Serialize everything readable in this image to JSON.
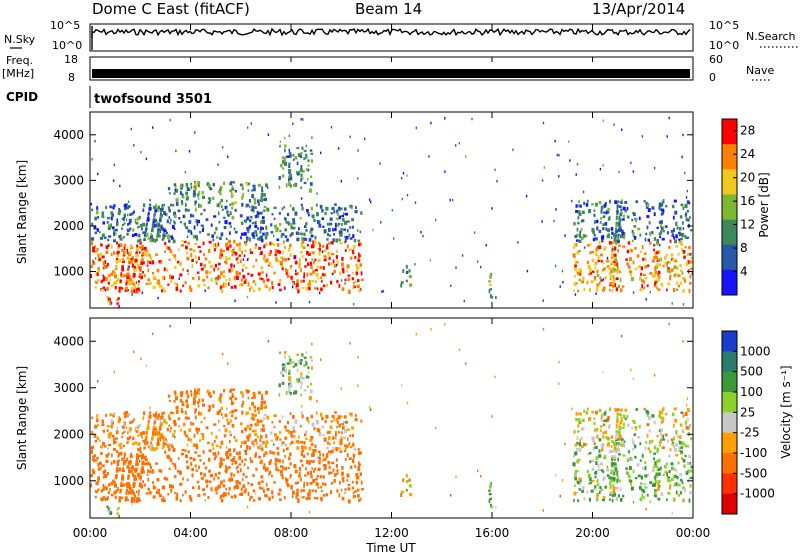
{
  "header": {
    "radar": "Dome C East (fitACF)",
    "beam": "Beam 14",
    "date": "13/Apr/2014"
  },
  "left_labels": {
    "nsky": "N.Sky",
    "freq": "Freq.",
    "freq_unit": "[MHz]",
    "cpid": "CPID"
  },
  "right_labels": {
    "nsearch": "N.Search",
    "nave": "Nave"
  },
  "cpid_value": "twofsound 3501",
  "noise_axis": {
    "top": "10^5",
    "bottom": "10^0"
  },
  "freq_axis": {
    "top": "18",
    "bottom": "8"
  },
  "nave_axis": {
    "top": "60",
    "bottom": "0"
  },
  "range_axis": {
    "label": "Slant Range [km]",
    "ticks": [
      "1000",
      "2000",
      "3000",
      "4000"
    ]
  },
  "time_axis": {
    "label": "Time UT",
    "ticks": [
      "00:00",
      "04:00",
      "08:00",
      "12:00",
      "16:00",
      "20:00",
      "00:00"
    ]
  },
  "power_colorbar": {
    "label": "Power [dB]",
    "ticks": [
      "4",
      "8",
      "12",
      "16",
      "20",
      "24",
      "28"
    ],
    "colors": [
      "#1414ff",
      "#2858a8",
      "#3c8a5a",
      "#7cb832",
      "#f2c81c",
      "#ff8000",
      "#ff0000"
    ]
  },
  "velocity_colorbar": {
    "label": "Velocity [m s⁻¹]",
    "ticks": [
      "1000",
      "500",
      "100",
      "25",
      "-25",
      "-100",
      "-500",
      "-1000"
    ],
    "colors": [
      "#1a3ccc",
      "#2d7a6e",
      "#3a9a3a",
      "#8cd22c",
      "#c8c8c8",
      "#ffa000",
      "#ff7000",
      "#ff3000",
      "#e00000"
    ]
  },
  "chart_data": {
    "type": "heatmap",
    "x_range_hours": [
      0,
      24
    ],
    "y_range_km": [
      200,
      4500
    ],
    "power_range_db": [
      0,
      30
    ],
    "velocity_range": [
      -1000,
      1000
    ],
    "echo_regions": [
      {
        "t0": 0.0,
        "t1": 10.8,
        "r0": 600,
        "r1": 1700,
        "power": 24,
        "velocity": -300
      },
      {
        "t0": 0.0,
        "t1": 10.8,
        "r0": 1700,
        "r1": 2500,
        "power": 8,
        "velocity": -120
      },
      {
        "t0": 3.0,
        "t1": 7.0,
        "r0": 2500,
        "r1": 3000,
        "power": 12,
        "velocity": -200
      },
      {
        "t0": 7.5,
        "t1": 8.8,
        "r0": 2800,
        "r1": 3800,
        "power": 10,
        "velocity": 80
      },
      {
        "t0": 0.5,
        "t1": 1.2,
        "r0": 250,
        "r1": 500,
        "power": 26,
        "velocity": 50
      },
      {
        "t0": 12.3,
        "t1": 12.7,
        "r0": 700,
        "r1": 1200,
        "power": 10,
        "velocity": -50
      },
      {
        "t0": 15.8,
        "t1": 16.1,
        "r0": 400,
        "r1": 1000,
        "power": 14,
        "velocity": 150
      },
      {
        "t0": 19.2,
        "t1": 23.9,
        "r0": 600,
        "r1": 1700,
        "power": 22,
        "velocity": 80
      },
      {
        "t0": 19.2,
        "t1": 23.9,
        "r0": 1700,
        "r1": 2600,
        "power": 8,
        "velocity": 10
      }
    ]
  }
}
